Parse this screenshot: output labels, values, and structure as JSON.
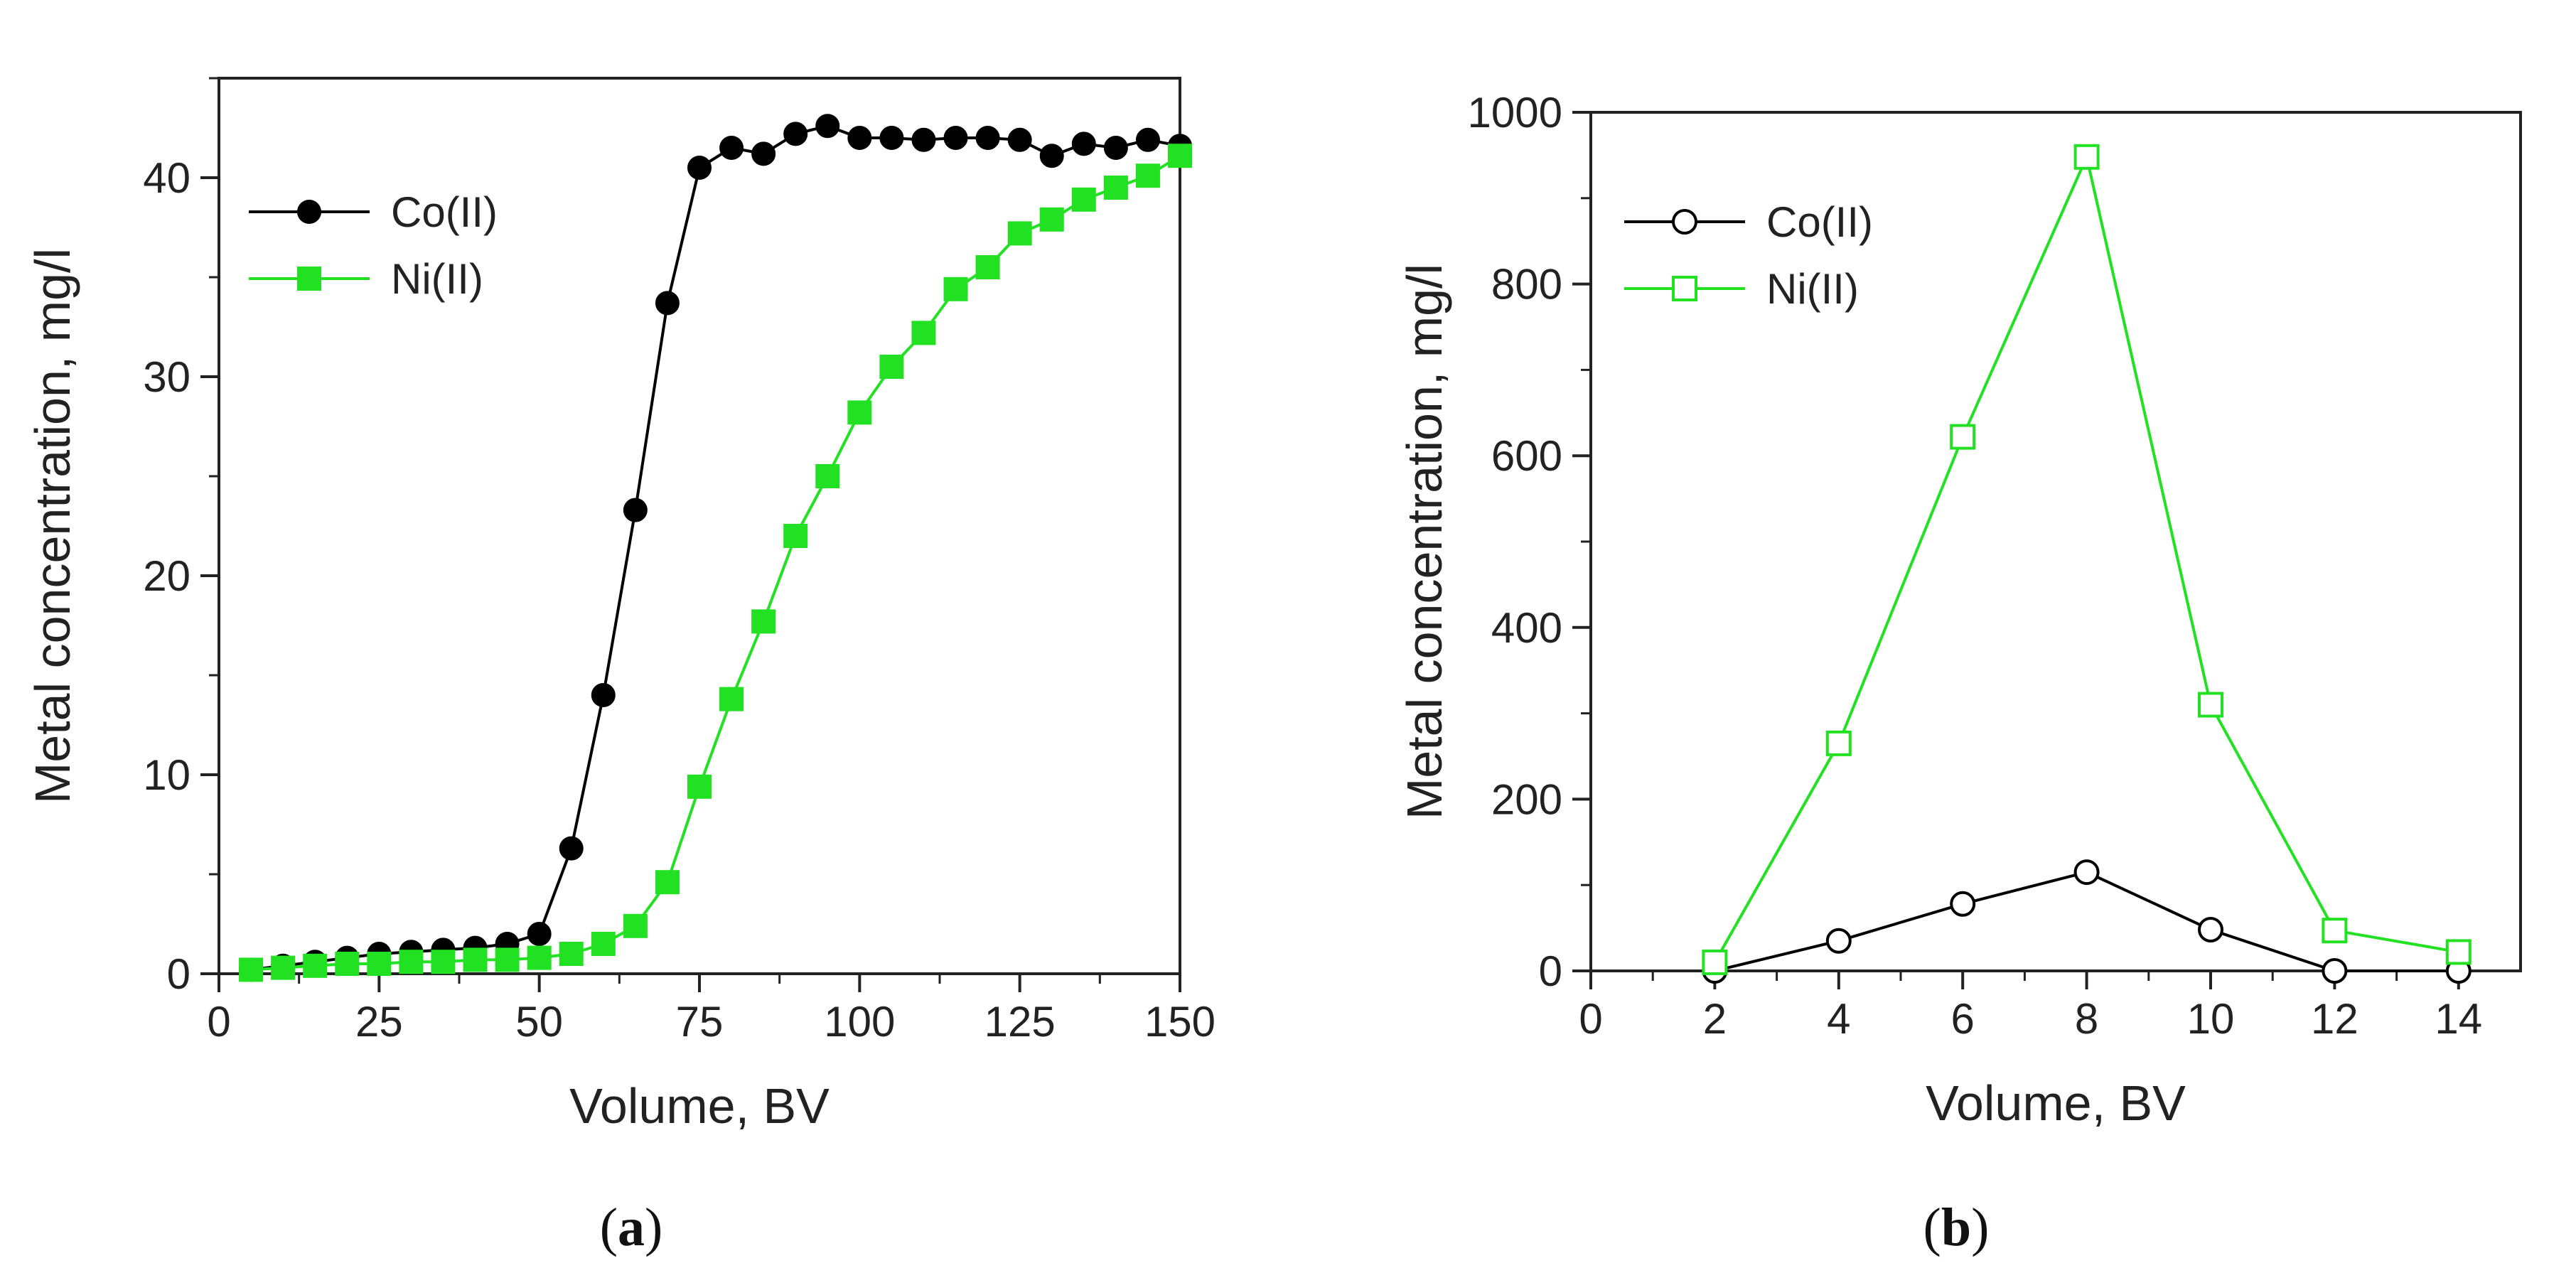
{
  "chart_data": [
    {
      "id": "a",
      "type": "line",
      "panel_label": "a",
      "title": "",
      "xlabel": "Volume, BV",
      "ylabel": "Metal concentration, mg/l",
      "xlim": [
        0,
        150
      ],
      "ylim": [
        0,
        45
      ],
      "xticks": [
        0,
        25,
        50,
        75,
        100,
        125,
        150
      ],
      "yticks": [
        0,
        10,
        20,
        30,
        40
      ],
      "grid": false,
      "legend_position": "top-left",
      "series": [
        {
          "name": "Co(II)",
          "color": "#000000",
          "marker": "circle",
          "filled": true,
          "x": [
            5,
            10,
            15,
            20,
            25,
            30,
            35,
            40,
            45,
            50,
            55,
            60,
            65,
            70,
            75,
            80,
            85,
            90,
            95,
            100,
            105,
            110,
            115,
            120,
            125,
            130,
            135,
            140,
            145,
            150
          ],
          "y": [
            0.2,
            0.4,
            0.6,
            0.8,
            1.0,
            1.1,
            1.2,
            1.3,
            1.5,
            2.0,
            6.3,
            14.0,
            23.3,
            33.7,
            40.5,
            41.5,
            41.2,
            42.2,
            42.6,
            42.0,
            42.0,
            41.9,
            42.0,
            42.0,
            41.9,
            41.1,
            41.7,
            41.5,
            41.9,
            41.6
          ]
        },
        {
          "name": "Ni(II)",
          "color": "#22e022",
          "marker": "square",
          "filled": true,
          "x": [
            5,
            10,
            15,
            20,
            25,
            30,
            35,
            40,
            45,
            50,
            55,
            60,
            65,
            70,
            75,
            80,
            85,
            90,
            95,
            100,
            105,
            110,
            115,
            120,
            125,
            130,
            135,
            140,
            145,
            150
          ],
          "y": [
            0.2,
            0.3,
            0.4,
            0.5,
            0.5,
            0.6,
            0.6,
            0.7,
            0.7,
            0.8,
            1.0,
            1.5,
            2.4,
            4.6,
            9.4,
            13.8,
            17.7,
            22.0,
            25.0,
            28.2,
            30.5,
            32.2,
            34.4,
            35.5,
            37.2,
            37.9,
            38.9,
            39.5,
            40.1,
            41.1
          ]
        }
      ]
    },
    {
      "id": "b",
      "type": "line",
      "panel_label": "b",
      "title": "",
      "xlabel": "Volume, BV",
      "ylabel": "Metal concentration, mg/l",
      "xlim": [
        0,
        15
      ],
      "ylim": [
        0,
        1000
      ],
      "xticks": [
        0,
        2,
        4,
        6,
        8,
        10,
        12,
        14
      ],
      "yticks": [
        0,
        200,
        400,
        600,
        800,
        1000
      ],
      "grid": false,
      "legend_position": "top-left",
      "series": [
        {
          "name": "Co(II)",
          "color": "#000000",
          "marker": "circle",
          "filled": false,
          "x": [
            2,
            4,
            6,
            8,
            10,
            12,
            14
          ],
          "y": [
            0,
            35,
            78,
            115,
            48,
            0,
            0
          ]
        },
        {
          "name": "Ni(II)",
          "color": "#22e022",
          "marker": "square",
          "filled": false,
          "x": [
            2,
            4,
            6,
            8,
            10,
            12,
            14
          ],
          "y": [
            10,
            265,
            622,
            948,
            310,
            47,
            22
          ]
        }
      ]
    }
  ]
}
